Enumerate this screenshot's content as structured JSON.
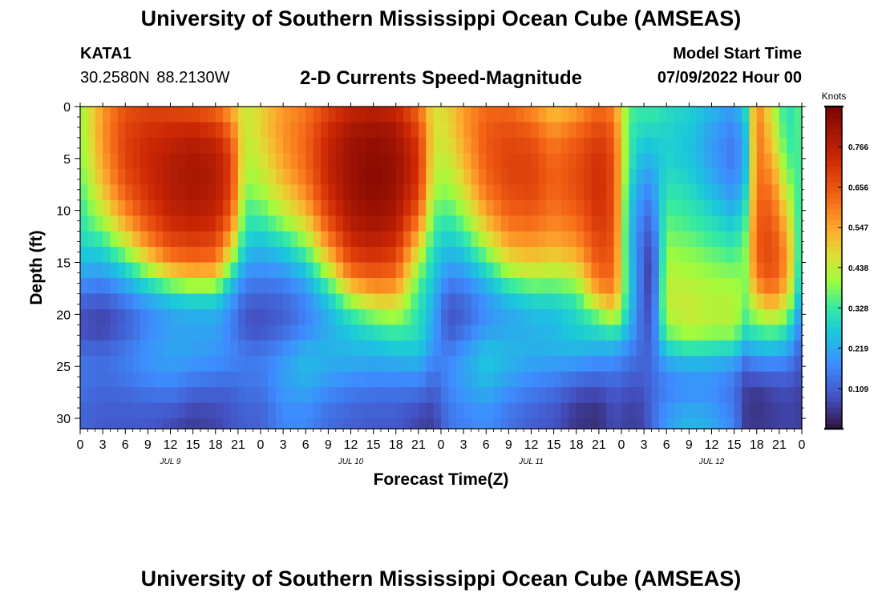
{
  "page": {
    "title": "University of Southern Mississippi Ocean Cube (AMSEAS)",
    "bottom_title": "University of Southern Mississippi Ocean Cube (AMSEAS)",
    "station_id": "KATA1",
    "station_coords": "30.2580N  88.2130W",
    "subtitle": "2-D Currents Speed-Magnitude",
    "model_label": "Model Start Time",
    "model_date": "07/09/2022 Hour 00"
  },
  "chart_data": {
    "type": "heatmap",
    "title": "2-D Currents Speed-Magnitude",
    "xlabel": "Forecast Time(Z)",
    "ylabel": "Depth (ft)",
    "x_unit": "hours since model start",
    "xlim": [
      0,
      96
    ],
    "ylim": [
      31,
      0
    ],
    "x_ticks": [
      0,
      3,
      6,
      9,
      12,
      15,
      18,
      21,
      24,
      27,
      30,
      33,
      36,
      39,
      42,
      45,
      48,
      51,
      54,
      57,
      60,
      63,
      66,
      69,
      72,
      75,
      78,
      81,
      84,
      87,
      90,
      93,
      96
    ],
    "x_tick_labels": [
      "0",
      "3",
      "6",
      "9",
      "12",
      "15",
      "18",
      "21",
      "0",
      "3",
      "6",
      "9",
      "12",
      "15",
      "18",
      "21",
      "0",
      "3",
      "6",
      "9",
      "12",
      "15",
      "18",
      "21",
      "0",
      "3",
      "6",
      "9",
      "12",
      "15",
      "18",
      "21",
      "0"
    ],
    "day_labels": [
      {
        "text": "JUL 9",
        "hour": 12
      },
      {
        "text": "JUL 10",
        "hour": 36
      },
      {
        "text": "JUL 11",
        "hour": 60
      },
      {
        "text": "JUL 12",
        "hour": 84
      }
    ],
    "y_ticks": [
      0,
      5,
      10,
      15,
      20,
      25,
      30
    ],
    "y_tick_labels": [
      "0",
      "5",
      "10",
      "15",
      "20",
      "25",
      "30"
    ],
    "colorbar": {
      "title": "Knots",
      "range": [
        0.0,
        0.875
      ],
      "ticks": [
        0.766,
        0.656,
        0.547,
        0.438,
        0.328,
        0.219,
        0.109
      ],
      "tick_labels": [
        "0.766",
        "0.656",
        "0.547",
        "0.438",
        "0.328",
        "0.219",
        "0.109"
      ]
    },
    "depths_ft": [
      0,
      1.5,
      3,
      4.5,
      6,
      7.5,
      9,
      10.5,
      12,
      13.5,
      15,
      16.5,
      18,
      19.5,
      21,
      22.5,
      24,
      25.5,
      27,
      28.5,
      30,
      31
    ],
    "columns": [
      {
        "hour": 0,
        "speeds": [
          0.4,
          0.4,
          0.39,
          0.38,
          0.37,
          0.35,
          0.33,
          0.32,
          0.3,
          0.28,
          0.24,
          0.2,
          0.14,
          0.1,
          0.08,
          0.1,
          0.14,
          0.14,
          0.14,
          0.12,
          0.12,
          0.12
        ]
      },
      {
        "hour": 3,
        "speeds": [
          0.56,
          0.57,
          0.57,
          0.56,
          0.54,
          0.52,
          0.48,
          0.43,
          0.37,
          0.3,
          0.24,
          0.18,
          0.12,
          0.08,
          0.06,
          0.09,
          0.13,
          0.13,
          0.12,
          0.11,
          0.1,
          0.1
        ]
      },
      {
        "hour": 6,
        "speeds": [
          0.66,
          0.68,
          0.69,
          0.69,
          0.68,
          0.66,
          0.62,
          0.57,
          0.5,
          0.42,
          0.32,
          0.24,
          0.18,
          0.12,
          0.1,
          0.13,
          0.15,
          0.15,
          0.13,
          0.11,
          0.1,
          0.1
        ]
      },
      {
        "hour": 9,
        "speeds": [
          0.68,
          0.71,
          0.73,
          0.74,
          0.74,
          0.73,
          0.71,
          0.68,
          0.63,
          0.56,
          0.46,
          0.34,
          0.24,
          0.18,
          0.16,
          0.18,
          0.19,
          0.18,
          0.15,
          0.12,
          0.1,
          0.1
        ]
      },
      {
        "hour": 12,
        "speeds": [
          0.67,
          0.72,
          0.75,
          0.77,
          0.78,
          0.78,
          0.77,
          0.75,
          0.71,
          0.66,
          0.58,
          0.44,
          0.3,
          0.22,
          0.2,
          0.21,
          0.21,
          0.19,
          0.16,
          0.12,
          0.08,
          0.08
        ]
      },
      {
        "hour": 15,
        "speeds": [
          0.65,
          0.72,
          0.77,
          0.79,
          0.8,
          0.8,
          0.79,
          0.77,
          0.73,
          0.68,
          0.61,
          0.49,
          0.33,
          0.24,
          0.21,
          0.21,
          0.2,
          0.17,
          0.13,
          0.09,
          0.06,
          0.06
        ]
      },
      {
        "hour": 18,
        "speeds": [
          0.62,
          0.69,
          0.74,
          0.77,
          0.78,
          0.78,
          0.77,
          0.75,
          0.71,
          0.66,
          0.6,
          0.48,
          0.32,
          0.24,
          0.21,
          0.2,
          0.19,
          0.16,
          0.12,
          0.09,
          0.07,
          0.07
        ]
      },
      {
        "hour": 20,
        "speeds": [
          0.54,
          0.6,
          0.65,
          0.69,
          0.7,
          0.7,
          0.68,
          0.64,
          0.58,
          0.5,
          0.4,
          0.3,
          0.22,
          0.18,
          0.16,
          0.17,
          0.17,
          0.15,
          0.12,
          0.1,
          0.09,
          0.09
        ]
      },
      {
        "hour": 22,
        "speeds": [
          0.44,
          0.44,
          0.43,
          0.42,
          0.41,
          0.39,
          0.36,
          0.33,
          0.3,
          0.26,
          0.22,
          0.17,
          0.13,
          0.1,
          0.09,
          0.12,
          0.15,
          0.15,
          0.14,
          0.12,
          0.11,
          0.11
        ]
      },
      {
        "hour": 24,
        "speeds": [
          0.48,
          0.49,
          0.48,
          0.46,
          0.44,
          0.42,
          0.38,
          0.34,
          0.29,
          0.24,
          0.2,
          0.16,
          0.12,
          0.09,
          0.08,
          0.11,
          0.15,
          0.15,
          0.14,
          0.12,
          0.11,
          0.11
        ]
      },
      {
        "hour": 27,
        "speeds": [
          0.56,
          0.57,
          0.57,
          0.56,
          0.54,
          0.51,
          0.47,
          0.42,
          0.35,
          0.28,
          0.22,
          0.17,
          0.13,
          0.11,
          0.11,
          0.15,
          0.19,
          0.2,
          0.2,
          0.18,
          0.17,
          0.17
        ]
      },
      {
        "hour": 30,
        "speeds": [
          0.6,
          0.62,
          0.63,
          0.63,
          0.62,
          0.6,
          0.56,
          0.51,
          0.44,
          0.37,
          0.29,
          0.23,
          0.18,
          0.16,
          0.16,
          0.2,
          0.24,
          0.24,
          0.22,
          0.19,
          0.17,
          0.17
        ]
      },
      {
        "hour": 33,
        "speeds": [
          0.68,
          0.72,
          0.74,
          0.75,
          0.75,
          0.74,
          0.72,
          0.68,
          0.63,
          0.56,
          0.48,
          0.38,
          0.29,
          0.24,
          0.22,
          0.23,
          0.23,
          0.21,
          0.18,
          0.15,
          0.13,
          0.13
        ]
      },
      {
        "hour": 36,
        "speeds": [
          0.74,
          0.78,
          0.81,
          0.82,
          0.82,
          0.82,
          0.81,
          0.79,
          0.76,
          0.72,
          0.67,
          0.58,
          0.46,
          0.35,
          0.28,
          0.25,
          0.23,
          0.2,
          0.16,
          0.13,
          0.11,
          0.11
        ]
      },
      {
        "hour": 39,
        "speeds": [
          0.76,
          0.8,
          0.83,
          0.84,
          0.85,
          0.85,
          0.84,
          0.82,
          0.79,
          0.75,
          0.7,
          0.63,
          0.54,
          0.43,
          0.33,
          0.27,
          0.23,
          0.19,
          0.15,
          0.12,
          0.1,
          0.1
        ]
      },
      {
        "hour": 42,
        "speeds": [
          0.73,
          0.78,
          0.81,
          0.82,
          0.83,
          0.82,
          0.81,
          0.79,
          0.76,
          0.72,
          0.67,
          0.61,
          0.53,
          0.45,
          0.37,
          0.3,
          0.24,
          0.19,
          0.15,
          0.12,
          0.1,
          0.1
        ]
      },
      {
        "hour": 45,
        "speeds": [
          0.62,
          0.66,
          0.7,
          0.72,
          0.72,
          0.71,
          0.68,
          0.63,
          0.56,
          0.49,
          0.42,
          0.37,
          0.33,
          0.31,
          0.31,
          0.29,
          0.25,
          0.2,
          0.15,
          0.1,
          0.07,
          0.07
        ]
      },
      {
        "hour": 47,
        "speeds": [
          0.46,
          0.46,
          0.46,
          0.45,
          0.44,
          0.42,
          0.39,
          0.36,
          0.33,
          0.3,
          0.28,
          0.26,
          0.24,
          0.22,
          0.21,
          0.2,
          0.17,
          0.14,
          0.11,
          0.08,
          0.06,
          0.06
        ]
      },
      {
        "hour": 49,
        "speeds": [
          0.49,
          0.48,
          0.47,
          0.45,
          0.43,
          0.4,
          0.37,
          0.33,
          0.29,
          0.25,
          0.21,
          0.17,
          0.12,
          0.09,
          0.09,
          0.12,
          0.16,
          0.17,
          0.17,
          0.15,
          0.14,
          0.14
        ]
      },
      {
        "hour": 51,
        "speeds": [
          0.56,
          0.56,
          0.55,
          0.53,
          0.51,
          0.48,
          0.44,
          0.39,
          0.34,
          0.28,
          0.23,
          0.18,
          0.14,
          0.11,
          0.12,
          0.16,
          0.2,
          0.21,
          0.2,
          0.18,
          0.16,
          0.16
        ]
      },
      {
        "hour": 54,
        "speeds": [
          0.62,
          0.64,
          0.65,
          0.65,
          0.64,
          0.62,
          0.59,
          0.54,
          0.48,
          0.41,
          0.33,
          0.26,
          0.2,
          0.18,
          0.19,
          0.23,
          0.26,
          0.26,
          0.23,
          0.2,
          0.18,
          0.18
        ]
      },
      {
        "hour": 57,
        "speeds": [
          0.62,
          0.66,
          0.68,
          0.69,
          0.69,
          0.68,
          0.66,
          0.63,
          0.59,
          0.53,
          0.46,
          0.37,
          0.28,
          0.22,
          0.21,
          0.23,
          0.24,
          0.22,
          0.19,
          0.16,
          0.14,
          0.14
        ]
      },
      {
        "hour": 60,
        "speeds": [
          0.57,
          0.62,
          0.66,
          0.68,
          0.69,
          0.69,
          0.67,
          0.64,
          0.6,
          0.55,
          0.49,
          0.41,
          0.32,
          0.25,
          0.23,
          0.23,
          0.22,
          0.19,
          0.16,
          0.13,
          0.11,
          0.11
        ]
      },
      {
        "hour": 63,
        "speeds": [
          0.5,
          0.55,
          0.59,
          0.62,
          0.63,
          0.63,
          0.62,
          0.6,
          0.57,
          0.53,
          0.47,
          0.4,
          0.32,
          0.26,
          0.24,
          0.24,
          0.22,
          0.18,
          0.14,
          0.11,
          0.09,
          0.09
        ]
      },
      {
        "hour": 66,
        "speeds": [
          0.54,
          0.6,
          0.64,
          0.66,
          0.67,
          0.67,
          0.66,
          0.63,
          0.6,
          0.56,
          0.5,
          0.43,
          0.35,
          0.3,
          0.28,
          0.26,
          0.22,
          0.16,
          0.1,
          0.06,
          0.05,
          0.05
        ]
      },
      {
        "hour": 69,
        "speeds": [
          0.62,
          0.67,
          0.7,
          0.72,
          0.73,
          0.73,
          0.73,
          0.72,
          0.7,
          0.68,
          0.66,
          0.62,
          0.55,
          0.42,
          0.32,
          0.26,
          0.2,
          0.14,
          0.09,
          0.05,
          0.04,
          0.04
        ]
      },
      {
        "hour": 71,
        "speeds": [
          0.58,
          0.62,
          0.65,
          0.66,
          0.67,
          0.67,
          0.67,
          0.67,
          0.66,
          0.65,
          0.64,
          0.62,
          0.58,
          0.5,
          0.38,
          0.27,
          0.2,
          0.15,
          0.11,
          0.09,
          0.08,
          0.08
        ]
      },
      {
        "hour": 73,
        "speeds": [
          0.36,
          0.34,
          0.33,
          0.33,
          0.32,
          0.3,
          0.28,
          0.27,
          0.26,
          0.26,
          0.27,
          0.28,
          0.28,
          0.26,
          0.24,
          0.2,
          0.15,
          0.12,
          0.09,
          0.07,
          0.06,
          0.06
        ]
      },
      {
        "hour": 75,
        "speeds": [
          0.32,
          0.3,
          0.27,
          0.24,
          0.21,
          0.18,
          0.16,
          0.14,
          0.12,
          0.11,
          0.1,
          0.1,
          0.1,
          0.1,
          0.1,
          0.11,
          0.11,
          0.11,
          0.09,
          0.08,
          0.07,
          0.07
        ]
      },
      {
        "hour": 76,
        "speeds": [
          0.34,
          0.31,
          0.28,
          0.25,
          0.22,
          0.19,
          0.16,
          0.13,
          0.1,
          0.07,
          0.05,
          0.05,
          0.06,
          0.08,
          0.09,
          0.11,
          0.12,
          0.13,
          0.12,
          0.12,
          0.12,
          0.12
        ]
      },
      {
        "hour": 78,
        "speeds": [
          0.3,
          0.29,
          0.28,
          0.28,
          0.29,
          0.31,
          0.33,
          0.35,
          0.37,
          0.39,
          0.41,
          0.43,
          0.44,
          0.43,
          0.4,
          0.33,
          0.24,
          0.18,
          0.16,
          0.17,
          0.2,
          0.2
        ]
      },
      {
        "hour": 81,
        "speeds": [
          0.28,
          0.27,
          0.26,
          0.26,
          0.27,
          0.29,
          0.31,
          0.33,
          0.35,
          0.38,
          0.4,
          0.42,
          0.44,
          0.45,
          0.44,
          0.38,
          0.27,
          0.2,
          0.18,
          0.2,
          0.24,
          0.24
        ]
      },
      {
        "hour": 84,
        "speeds": [
          0.24,
          0.22,
          0.2,
          0.2,
          0.21,
          0.23,
          0.26,
          0.29,
          0.32,
          0.35,
          0.38,
          0.4,
          0.42,
          0.43,
          0.42,
          0.36,
          0.26,
          0.2,
          0.18,
          0.19,
          0.22,
          0.22
        ]
      },
      {
        "hour": 87,
        "speeds": [
          0.2,
          0.17,
          0.15,
          0.14,
          0.15,
          0.17,
          0.2,
          0.24,
          0.28,
          0.32,
          0.36,
          0.39,
          0.42,
          0.43,
          0.42,
          0.35,
          0.24,
          0.17,
          0.14,
          0.14,
          0.16,
          0.16
        ]
      },
      {
        "hour": 88.5,
        "speeds": [
          0.3,
          0.27,
          0.25,
          0.24,
          0.25,
          0.27,
          0.3,
          0.33,
          0.36,
          0.38,
          0.39,
          0.39,
          0.38,
          0.36,
          0.33,
          0.26,
          0.17,
          0.1,
          0.07,
          0.06,
          0.06,
          0.06
        ]
      },
      {
        "hour": 90,
        "speeds": [
          0.6,
          0.62,
          0.62,
          0.62,
          0.62,
          0.62,
          0.63,
          0.64,
          0.65,
          0.65,
          0.64,
          0.6,
          0.53,
          0.44,
          0.36,
          0.28,
          0.2,
          0.12,
          0.06,
          0.04,
          0.05,
          0.05
        ]
      },
      {
        "hour": 92,
        "speeds": [
          0.44,
          0.47,
          0.5,
          0.53,
          0.57,
          0.6,
          0.63,
          0.65,
          0.67,
          0.68,
          0.68,
          0.66,
          0.6,
          0.5,
          0.4,
          0.3,
          0.21,
          0.13,
          0.08,
          0.06,
          0.06,
          0.06
        ]
      },
      {
        "hour": 94,
        "speeds": [
          0.3,
          0.31,
          0.32,
          0.34,
          0.37,
          0.41,
          0.45,
          0.49,
          0.53,
          0.56,
          0.57,
          0.55,
          0.5,
          0.42,
          0.34,
          0.26,
          0.19,
          0.13,
          0.09,
          0.07,
          0.07,
          0.07
        ]
      },
      {
        "hour": 96,
        "speeds": [
          0.36,
          0.36,
          0.35,
          0.34,
          0.33,
          0.32,
          0.3,
          0.29,
          0.28,
          0.27,
          0.26,
          0.24,
          0.21,
          0.18,
          0.15,
          0.12,
          0.1,
          0.08,
          0.07,
          0.06,
          0.06,
          0.06
        ]
      }
    ]
  }
}
